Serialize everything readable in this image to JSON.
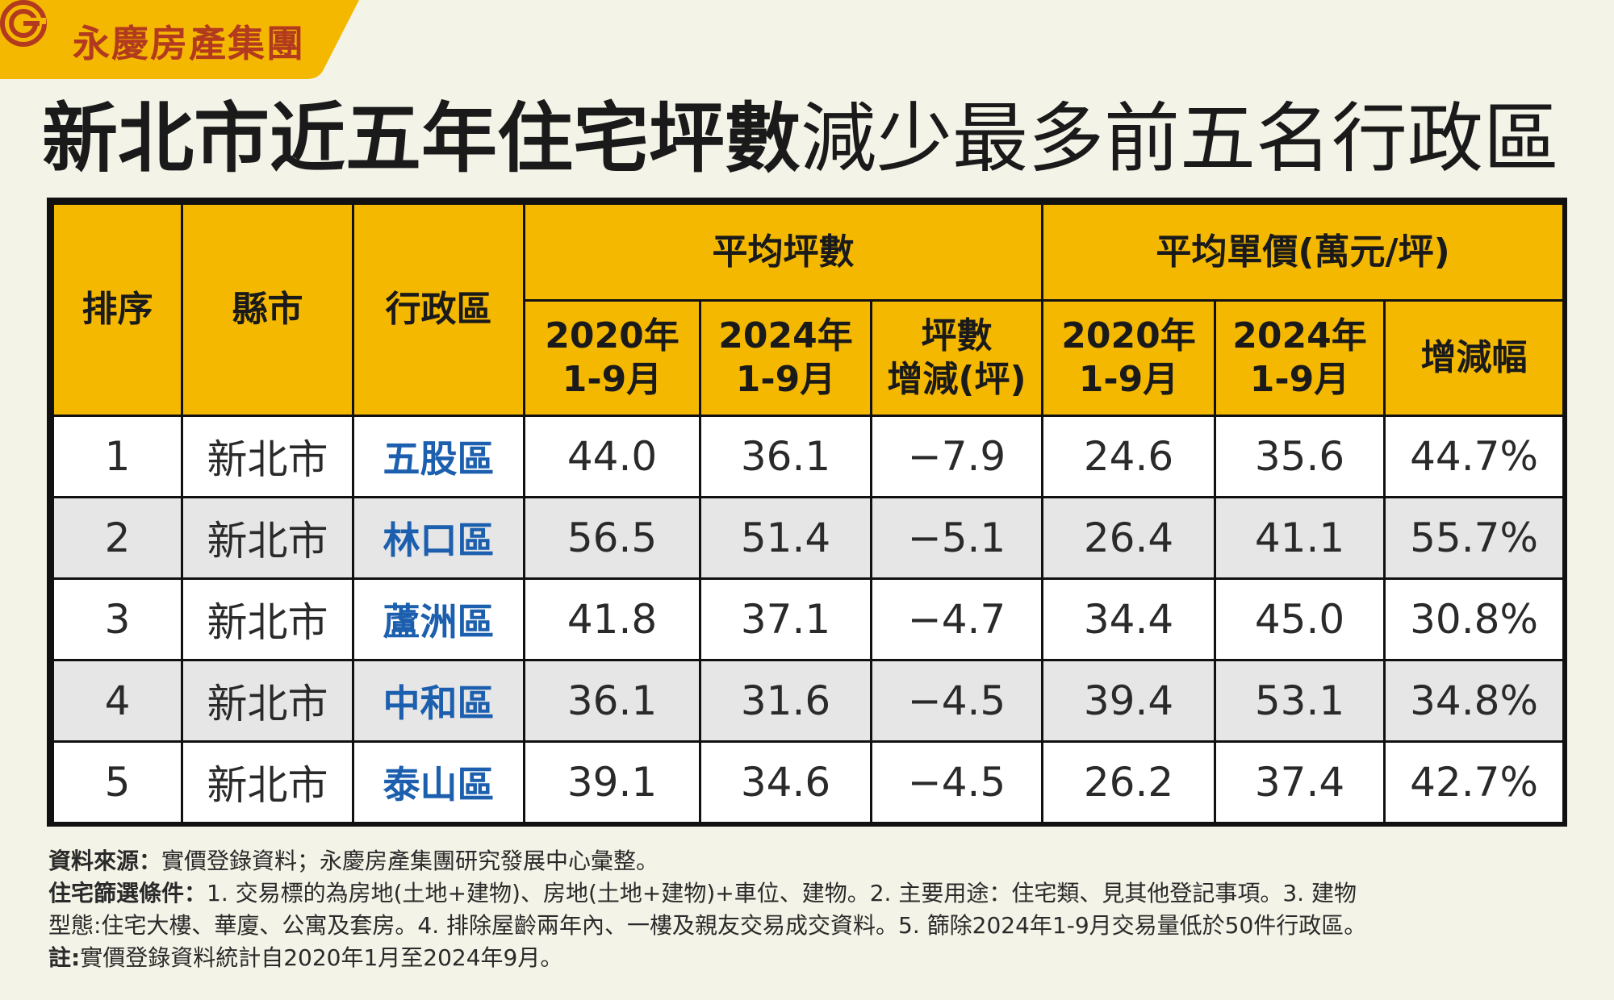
{
  "brand": {
    "name": "永慶房產集團",
    "tab_color": "#f5b800",
    "text_color": "#b23a1e"
  },
  "title": {
    "bold": "新北市近五年住宅坪數",
    "light": "減少最多前五名行政區"
  },
  "chart_data": {
    "type": "table",
    "header": {
      "rank": "排序",
      "city": "縣市",
      "district": "行政區",
      "group_area": "平均坪數",
      "group_price": "平均單價(萬元/坪)",
      "area_2020": [
        "2020年",
        "1-9月"
      ],
      "area_2024": [
        "2024年",
        "1-9月"
      ],
      "area_change": [
        "坪數",
        "增減(坪)"
      ],
      "price_2020": [
        "2020年",
        "1-9月"
      ],
      "price_2024": [
        "2024年",
        "1-9月"
      ],
      "price_change": "增減幅"
    },
    "rows": [
      {
        "rank": "1",
        "city": "新北市",
        "district": "五股區",
        "area_2020": "44.0",
        "area_2024": "36.1",
        "area_change": "−7.9",
        "price_2020": "24.6",
        "price_2024": "35.6",
        "price_change": "44.7%"
      },
      {
        "rank": "2",
        "city": "新北市",
        "district": "林口區",
        "area_2020": "56.5",
        "area_2024": "51.4",
        "area_change": "−5.1",
        "price_2020": "26.4",
        "price_2024": "41.1",
        "price_change": "55.7%"
      },
      {
        "rank": "3",
        "city": "新北市",
        "district": "蘆洲區",
        "area_2020": "41.8",
        "area_2024": "37.1",
        "area_change": "−4.7",
        "price_2020": "34.4",
        "price_2024": "45.0",
        "price_change": "30.8%"
      },
      {
        "rank": "4",
        "city": "新北市",
        "district": "中和區",
        "area_2020": "36.1",
        "area_2024": "31.6",
        "area_change": "−4.5",
        "price_2020": "39.4",
        "price_2024": "53.1",
        "price_change": "34.8%"
      },
      {
        "rank": "5",
        "city": "新北市",
        "district": "泰山區",
        "area_2020": "39.1",
        "area_2024": "34.6",
        "area_change": "−4.5",
        "price_2020": "26.2",
        "price_2024": "37.4",
        "price_change": "42.7%"
      }
    ],
    "colors": {
      "header": "#f5b800",
      "district_text": "#1c5fae",
      "row_alt": "#e6e6e6"
    }
  },
  "notes": {
    "source_label": "資料來源：",
    "source_text": "實價登錄資料；永慶房產集團研究發展中心彙整。",
    "criteria_label": "住宅篩選條件：",
    "criteria_text_1": "1. 交易標的為房地(土地+建物)、房地(土地+建物)+車位、建物。2. 主要用途：住宅類、見其他登記事項。3. 建物",
    "criteria_text_2": "型態:住宅大樓、華廈、公寓及套房。4. 排除屋齡兩年內、一樓及親友交易成交資料。5. 篩除2024年1-9月交易量低於50件行政區。",
    "note_label": "註:",
    "note_text": "實價登錄資料統計自2020年1月至2024年9月。"
  }
}
